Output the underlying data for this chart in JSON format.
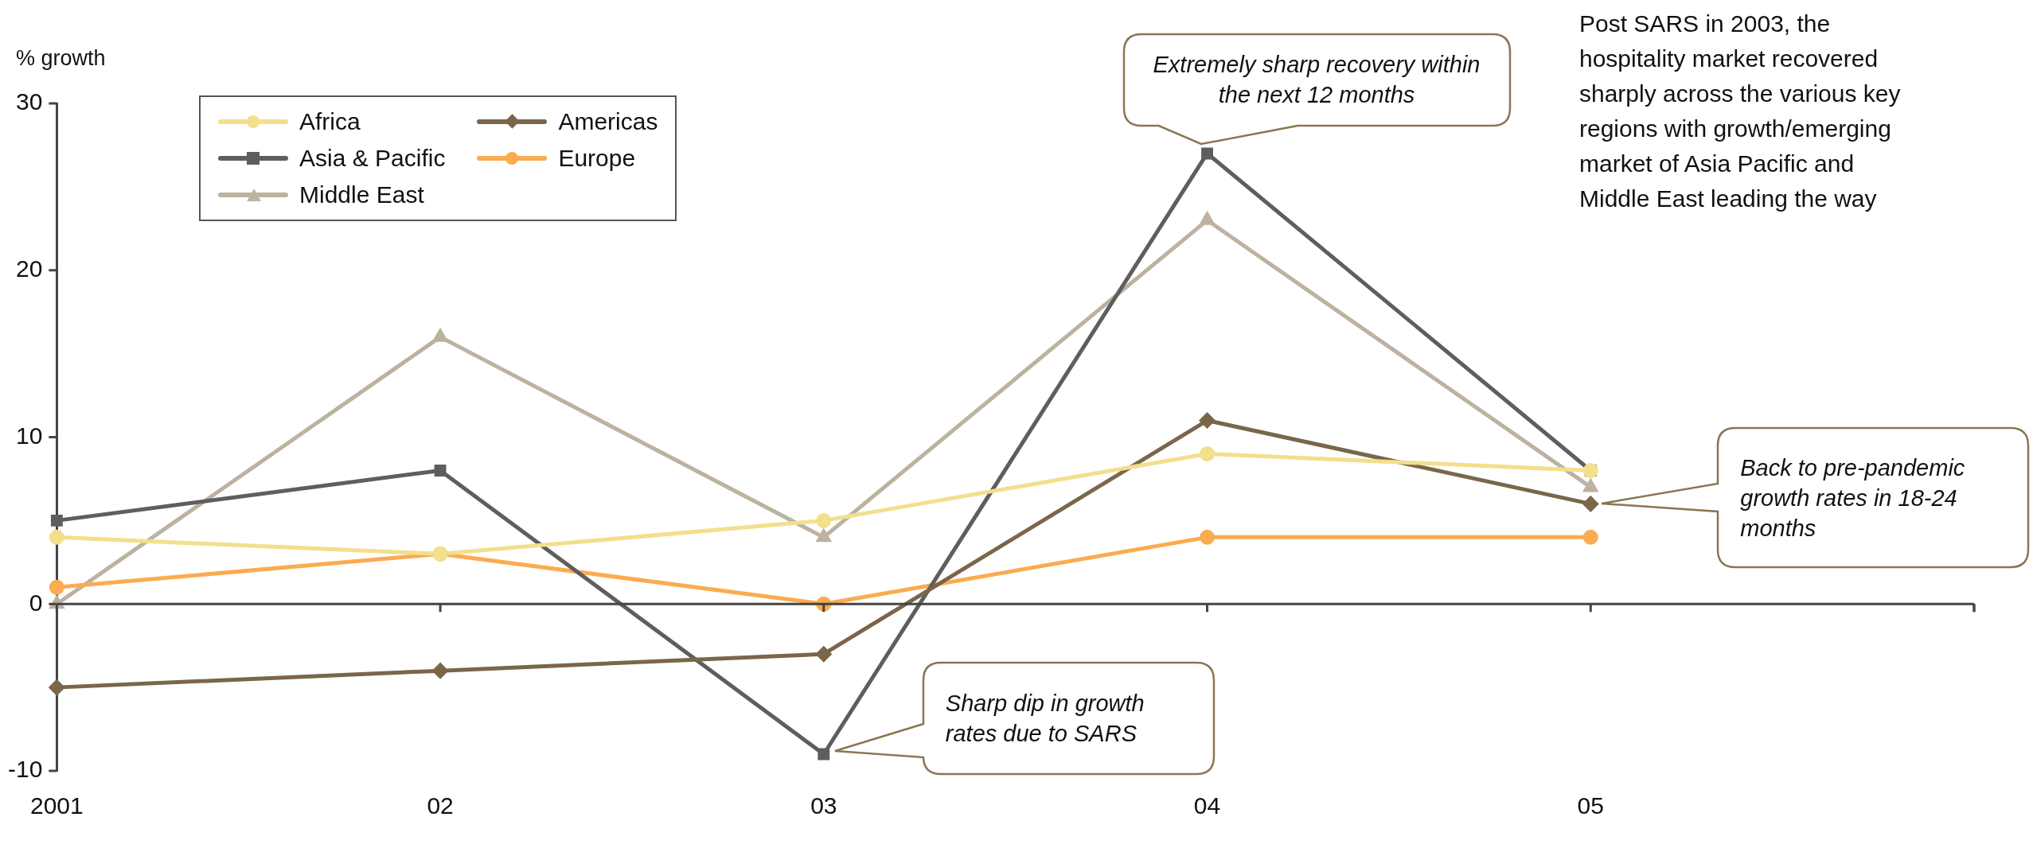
{
  "chart_data": {
    "type": "line",
    "ylabel": "% growth",
    "categories": [
      "2001",
      "02",
      "03",
      "04",
      "05",
      null
    ],
    "series": [
      {
        "name": "Africa",
        "color": "#f3df8c",
        "marker": "circle",
        "values": [
          4,
          3,
          5,
          9,
          8,
          null
        ]
      },
      {
        "name": "Americas",
        "color": "#7a6649",
        "marker": "diamond",
        "values": [
          -5,
          -4,
          -3,
          11,
          6,
          null
        ]
      },
      {
        "name": "Asia & Pacific",
        "color": "#5e5e5e",
        "marker": "square",
        "values": [
          5,
          8,
          -9,
          27,
          8,
          null
        ]
      },
      {
        "name": "Europe",
        "color": "#fbab50",
        "marker": "circle",
        "values": [
          1,
          3,
          0,
          4,
          4,
          null
        ]
      },
      {
        "name": "Middle East",
        "color": "#bdb2a0",
        "marker": "triangle",
        "values": [
          0,
          16,
          4,
          23,
          7,
          null
        ]
      }
    ],
    "ylim": [
      -10,
      30
    ],
    "yticks": [
      -10,
      0,
      10,
      20,
      30
    ],
    "legend": "top left",
    "annotations": [
      "Extremely sharp recovery within the next 12 months",
      "Sharp dip in growth rates due to SARS",
      "Back to pre-pandemic growth rates in 18-24 months",
      "Post SARS in 2003, the hospitality market recovered sharply across the various key regions with growth/emerging market of Asia Pacific and Middle East leading the way"
    ]
  }
}
